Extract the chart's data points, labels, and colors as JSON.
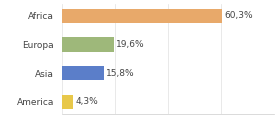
{
  "categories": [
    "America",
    "Asia",
    "Europa",
    "Africa"
  ],
  "values": [
    4.3,
    15.8,
    19.6,
    60.3
  ],
  "labels": [
    "4,3%",
    "15,8%",
    "19,6%",
    "60,3%"
  ],
  "bar_colors": [
    "#e8c84a",
    "#5b7ec9",
    "#9eb87a",
    "#e8a96a"
  ],
  "background_color": "#ffffff",
  "xlim": [
    0,
    80
  ],
  "label_fontsize": 6.5,
  "tick_fontsize": 6.5,
  "bar_height": 0.5
}
